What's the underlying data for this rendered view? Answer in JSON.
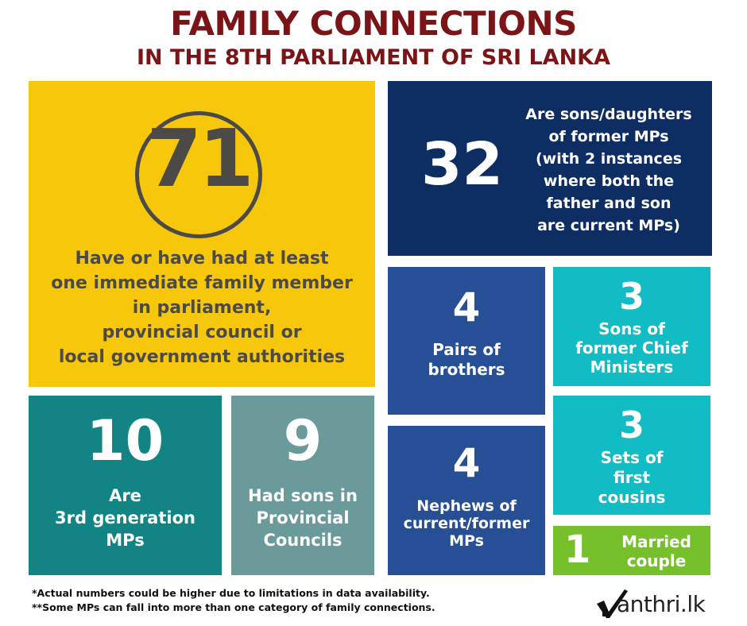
{
  "header": {
    "title": "FAMILY CONNECTIONS",
    "subtitle": "IN THE 8TH PARLIAMENT OF SRI LANKA"
  },
  "colors": {
    "title": "#7a1416",
    "yellow": "#f7c70b",
    "navy": "#0e2d63",
    "blue": "#274f95",
    "cyan": "#12bcc4",
    "teal": "#128484",
    "slate_teal": "#6a9a9a",
    "green": "#76c02c"
  },
  "tiles": {
    "immediate_family": {
      "number": "71",
      "lines": [
        "Have or have had at least",
        "one immediate family member",
        "in parliament,",
        "provincial council or",
        "local government authorities"
      ]
    },
    "sons_daughters": {
      "number": "32",
      "lines": [
        "Are sons/daughters",
        "of former MPs",
        "(with 2 instances",
        "where both the",
        "father and son",
        "are current MPs)"
      ]
    },
    "brothers": {
      "number": "4",
      "lines": [
        "Pairs of",
        "brothers"
      ]
    },
    "chief_ministers": {
      "number": "3",
      "lines": [
        "Sons of",
        "former Chief",
        "Ministers"
      ]
    },
    "third_generation": {
      "number": "10",
      "lines": [
        "Are",
        "3rd generation",
        "MPs"
      ]
    },
    "provincial_sons": {
      "number": "9",
      "lines": [
        "Had sons in",
        "Provincial",
        "Councils"
      ]
    },
    "cousins": {
      "number": "3",
      "lines": [
        "Sets of",
        "first",
        "cousins"
      ]
    },
    "nephews": {
      "number": "4",
      "lines": [
        "Nephews of",
        "current/former",
        "MPs"
      ]
    },
    "married": {
      "number": "1",
      "lines": [
        "Married",
        "couple"
      ]
    }
  },
  "footnotes": {
    "note1": "*Actual numbers could be higher due to limitations in data availability.",
    "note2": "**Some MPs can fall into more than one category of family connections."
  },
  "logo": {
    "text": "anthri.lk",
    "icon": "checkmark-m-icon"
  }
}
